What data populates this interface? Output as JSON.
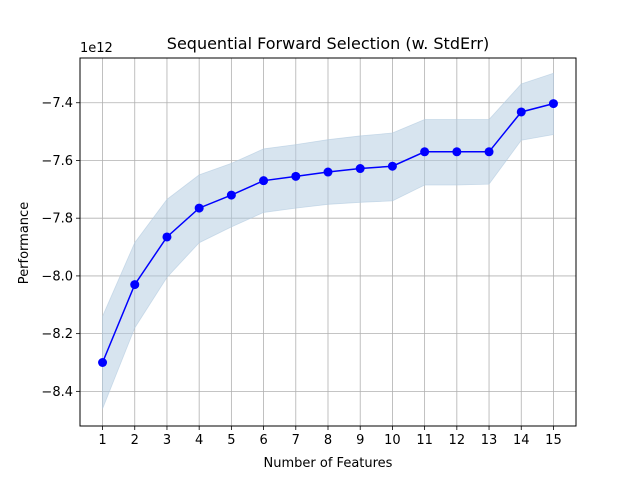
{
  "chart_data": {
    "type": "line",
    "title": "Sequential Forward Selection (w. StdErr)",
    "xlabel": "Number of Features",
    "ylabel": "Performance",
    "y_offset_label": "1e12",
    "x": [
      1,
      2,
      3,
      4,
      5,
      6,
      7,
      8,
      9,
      10,
      11,
      12,
      13,
      14,
      15
    ],
    "xlim": [
      0.3,
      15.7
    ],
    "ylim": [
      -8.52,
      -7.245
    ],
    "y_ticks": [
      -8.4,
      -8.2,
      -8.0,
      -7.8,
      -7.6,
      -7.4
    ],
    "y_tick_labels": [
      "−8.4",
      "−8.2",
      "−8.0",
      "−7.8",
      "−7.6",
      "−7.4"
    ],
    "grid": true,
    "series": [
      {
        "values": [
          -8.3,
          -8.03,
          -7.865,
          -7.765,
          -7.72,
          -7.67,
          -7.655,
          -7.64,
          -7.628,
          -7.62,
          -7.57,
          -7.57,
          -7.57,
          -7.432,
          -7.403
        ],
        "upper": [
          -8.14,
          -7.885,
          -7.735,
          -7.65,
          -7.61,
          -7.56,
          -7.545,
          -7.528,
          -7.515,
          -7.505,
          -7.458,
          -7.458,
          -7.458,
          -7.335,
          -7.298
        ],
        "lower": [
          -8.46,
          -8.18,
          -8.005,
          -7.885,
          -7.83,
          -7.78,
          -7.765,
          -7.752,
          -7.745,
          -7.74,
          -7.685,
          -7.685,
          -7.682,
          -7.53,
          -7.51
        ],
        "color": "#0000ff",
        "fill_color": "#b0c9e0"
      }
    ]
  }
}
